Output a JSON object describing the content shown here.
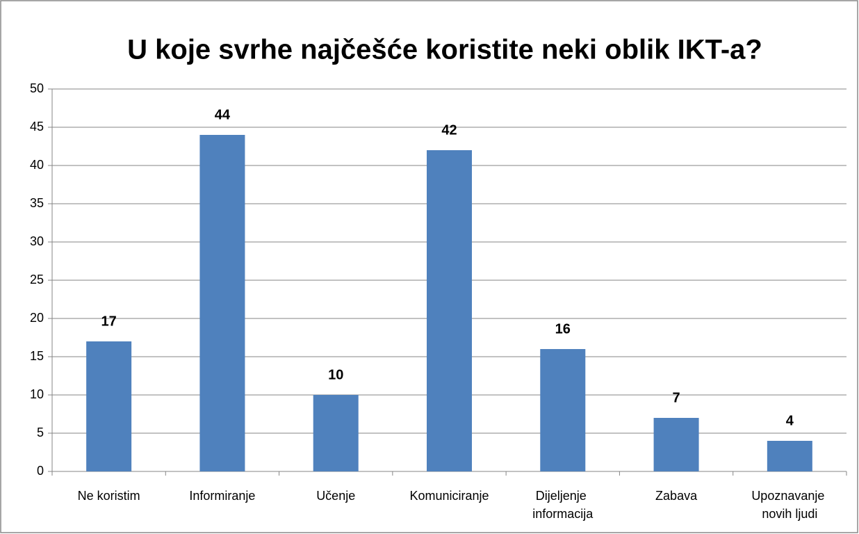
{
  "chart_data": {
    "type": "bar",
    "title": "U koje svrhe najčešće koristite neki oblik IKT-a?",
    "categories": [
      "Ne koristim",
      "Informiranje",
      "Učenje",
      "Komuniciranje",
      "Dijeljenje informacija",
      "Zabava",
      "Upoznavanje novih ljudi"
    ],
    "values": [
      17,
      44,
      10,
      42,
      16,
      7,
      4
    ],
    "color": "#4f81bd",
    "ylim": [
      0,
      50
    ],
    "yticks": [
      0,
      5,
      10,
      15,
      20,
      25,
      30,
      35,
      40,
      45,
      50
    ],
    "grid": true
  }
}
